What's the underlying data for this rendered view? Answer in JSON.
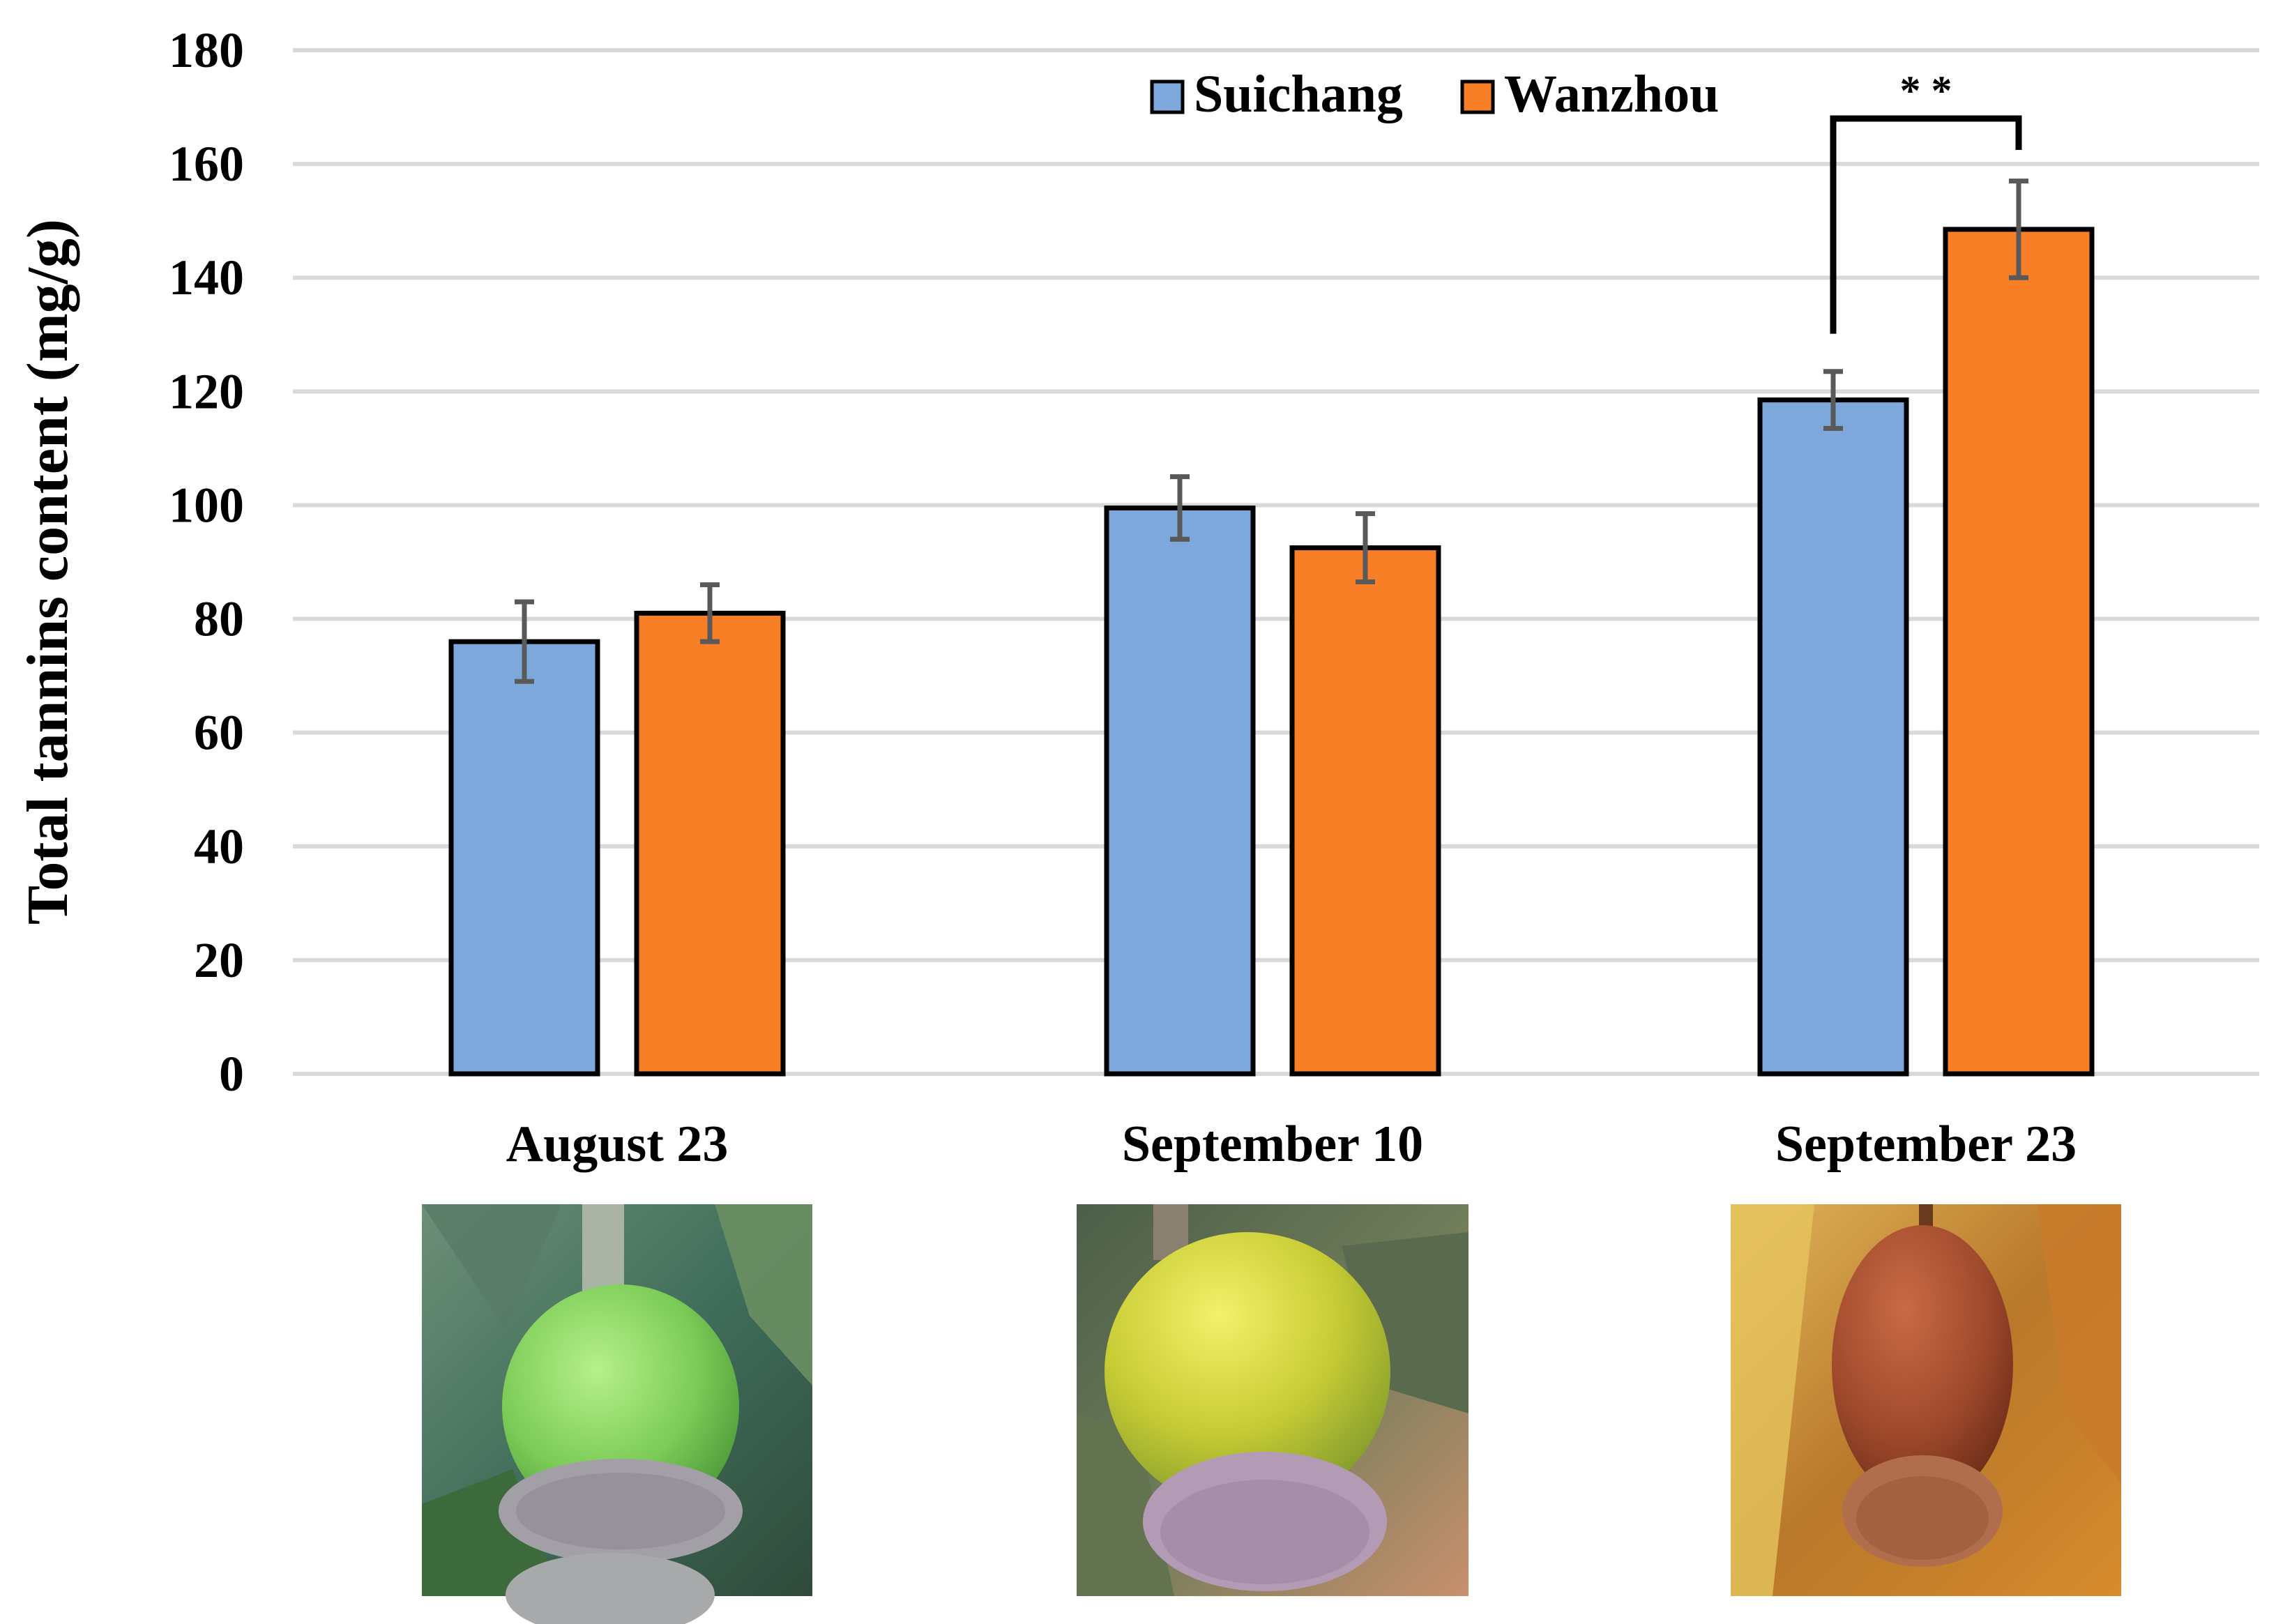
{
  "chart_data": {
    "type": "bar",
    "title": "",
    "xlabel": "",
    "ylabel": "Total tannins content (mg/g)",
    "ylim": [
      0,
      180
    ],
    "yticks": [
      0,
      20,
      40,
      60,
      80,
      100,
      120,
      140,
      160,
      180
    ],
    "grid": true,
    "legend_position": "top-right",
    "categories": [
      "August 23",
      "September 10",
      "September 23"
    ],
    "series": [
      {
        "name": "Suichang",
        "color": "#7EA7DC",
        "values": [
          76,
          99.5,
          118.5
        ],
        "errors": [
          7,
          5.5,
          5
        ]
      },
      {
        "name": "Wanzhou",
        "color": "#F97F26",
        "values": [
          81,
          92.5,
          148.5
        ],
        "errors": [
          5,
          6,
          8.5
        ]
      }
    ],
    "annotations": [
      {
        "text": "* *",
        "category": "September 23",
        "between_series": [
          "Suichang",
          "Wanzhou"
        ]
      }
    ]
  },
  "images": [
    {
      "category": "August 23",
      "description": "green acorn",
      "colors": [
        "#4f7a5a",
        "#8fd46a",
        "#9a9aa0"
      ]
    },
    {
      "category": "September 10",
      "description": "yellow-green acorn",
      "colors": [
        "#5a6e52",
        "#c9d33a",
        "#b39bb0"
      ]
    },
    {
      "category": "September 23",
      "description": "brown acorn",
      "colors": [
        "#c0822f",
        "#9a4a2a",
        "#b0704a"
      ]
    }
  ]
}
